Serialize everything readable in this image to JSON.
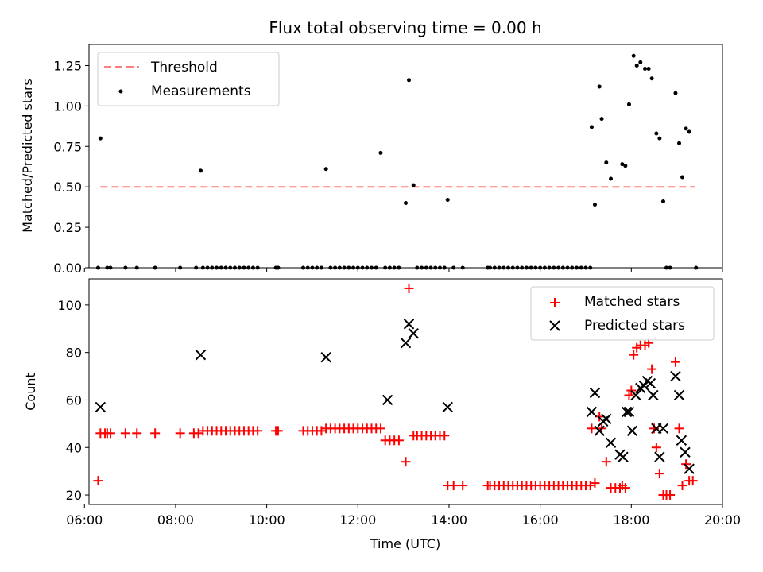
{
  "chart_data": [
    {
      "type": "scatter",
      "title": "Flux total observing time = 0.00 h",
      "xlabel": "",
      "ylabel": "Matched/Predicted stars",
      "xlim": [
        6.1,
        20.0
      ],
      "ylim": [
        0,
        1.38
      ],
      "x_ticks": [
        "06:00",
        "08:00",
        "10:00",
        "12:00",
        "14:00",
        "16:00",
        "18:00",
        "20:00"
      ],
      "y_ticks": [
        "0.00",
        "0.25",
        "0.50",
        "0.75",
        "1.00",
        "1.25"
      ],
      "threshold": {
        "name": "Threshold",
        "y": 0.5,
        "x_range": [
          6.35,
          19.4
        ],
        "color": "#ff7f7f"
      },
      "series": [
        {
          "name": "Measurements",
          "color": "#000000",
          "x": [
            6.3,
            6.35,
            6.5,
            6.57,
            6.9,
            7.15,
            7.55,
            8.1,
            8.45,
            8.55,
            8.6,
            8.7,
            8.8,
            8.9,
            9.0,
            9.1,
            9.2,
            9.3,
            9.4,
            9.5,
            9.6,
            9.7,
            9.8,
            10.2,
            10.25,
            10.8,
            10.9,
            11.0,
            11.1,
            11.2,
            11.3,
            11.4,
            11.5,
            11.6,
            11.7,
            11.8,
            11.9,
            12.0,
            12.1,
            12.2,
            12.3,
            12.4,
            12.5,
            12.6,
            12.7,
            12.8,
            12.9,
            13.05,
            13.12,
            13.22,
            13.3,
            13.4,
            13.5,
            13.6,
            13.7,
            13.8,
            13.9,
            13.97,
            14.1,
            14.3,
            14.85,
            14.9,
            15.0,
            15.1,
            15.2,
            15.3,
            15.4,
            15.5,
            15.6,
            15.7,
            15.8,
            15.9,
            16.0,
            16.1,
            16.2,
            16.3,
            16.4,
            16.5,
            16.6,
            16.7,
            16.8,
            16.9,
            17.0,
            17.1,
            17.13,
            17.2,
            17.3,
            17.35,
            17.45,
            17.55,
            17.8,
            17.87,
            17.95,
            18.05,
            18.12,
            18.2,
            18.3,
            18.38,
            18.45,
            18.55,
            18.62,
            18.7,
            18.77,
            18.85,
            18.97,
            19.05,
            19.12,
            19.2,
            19.27,
            19.42
          ],
          "values": [
            0,
            0.8,
            0,
            0,
            0,
            0,
            0,
            0,
            0,
            0.6,
            0,
            0,
            0,
            0,
            0,
            0,
            0,
            0,
            0,
            0,
            0,
            0,
            0,
            0,
            0,
            0,
            0,
            0,
            0,
            0,
            0.61,
            0,
            0,
            0,
            0,
            0,
            0,
            0,
            0,
            0,
            0,
            0,
            0.71,
            0,
            0,
            0,
            0,
            0.4,
            1.16,
            0.51,
            0,
            0,
            0,
            0,
            0,
            0,
            0,
            0.42,
            0,
            0,
            0,
            0,
            0,
            0,
            0,
            0,
            0,
            0,
            0,
            0,
            0,
            0,
            0,
            0,
            0,
            0,
            0,
            0,
            0,
            0,
            0,
            0,
            0,
            0,
            0.87,
            0.39,
            1.12,
            0.92,
            0.65,
            0.55,
            0.64,
            0.63,
            1.01,
            1.31,
            1.25,
            1.27,
            1.23,
            1.23,
            1.17,
            0.83,
            0.8,
            0.41,
            0,
            0,
            1.08,
            0.77,
            0.56,
            0.86,
            0.84,
            0
          ]
        }
      ],
      "legend": {
        "placement": "top-left",
        "entries": [
          "Threshold",
          "Measurements"
        ]
      }
    },
    {
      "type": "scatter",
      "title": "",
      "xlabel": "Time (UTC)",
      "ylabel": "Count",
      "xlim": [
        6.1,
        20.0
      ],
      "ylim": [
        16,
        111
      ],
      "x_ticks": [
        "06:00",
        "08:00",
        "10:00",
        "12:00",
        "14:00",
        "16:00",
        "18:00",
        "20:00"
      ],
      "y_ticks": [
        "20",
        "40",
        "60",
        "80",
        "100"
      ],
      "series": [
        {
          "name": "Matched stars",
          "marker": "plus",
          "color": "#ff0000",
          "x": [
            6.3,
            6.35,
            6.45,
            6.5,
            6.57,
            6.9,
            7.15,
            7.55,
            8.1,
            8.4,
            8.5,
            8.6,
            8.7,
            8.8,
            8.9,
            9.0,
            9.1,
            9.2,
            9.3,
            9.4,
            9.5,
            9.6,
            9.7,
            9.8,
            10.2,
            10.25,
            10.8,
            10.9,
            11.0,
            11.1,
            11.2,
            11.3,
            11.4,
            11.5,
            11.6,
            11.7,
            11.8,
            11.9,
            12.0,
            12.1,
            12.2,
            12.3,
            12.4,
            12.5,
            12.6,
            12.7,
            12.8,
            12.9,
            13.05,
            13.12,
            13.22,
            13.3,
            13.4,
            13.5,
            13.6,
            13.7,
            13.8,
            13.9,
            13.97,
            14.1,
            14.3,
            14.85,
            14.9,
            15.0,
            15.1,
            15.2,
            15.3,
            15.4,
            15.5,
            15.6,
            15.7,
            15.8,
            15.9,
            16.0,
            16.1,
            16.2,
            16.3,
            16.4,
            16.5,
            16.6,
            16.7,
            16.8,
            16.9,
            17.0,
            17.1,
            17.13,
            17.2,
            17.3,
            17.35,
            17.45,
            17.55,
            17.65,
            17.75,
            17.8,
            17.87,
            17.95,
            18.0,
            18.05,
            18.12,
            18.2,
            18.3,
            18.38,
            18.45,
            18.5,
            18.55,
            18.62,
            18.7,
            18.77,
            18.85,
            18.97,
            19.05,
            19.12,
            19.2,
            19.27,
            19.35
          ],
          "values": [
            26,
            46,
            46,
            46,
            46,
            46,
            46,
            46,
            46,
            46,
            46,
            47,
            47,
            47,
            47,
            47,
            47,
            47,
            47,
            47,
            47,
            47,
            47,
            47,
            47,
            47,
            47,
            47,
            47,
            47,
            47,
            48,
            48,
            48,
            48,
            48,
            48,
            48,
            48,
            48,
            48,
            48,
            48,
            48,
            43,
            43,
            43,
            43,
            34,
            107,
            45,
            45,
            45,
            45,
            45,
            45,
            45,
            45,
            24,
            24,
            24,
            24,
            24,
            24,
            24,
            24,
            24,
            24,
            24,
            24,
            24,
            24,
            24,
            24,
            24,
            24,
            24,
            24,
            24,
            24,
            24,
            24,
            24,
            24,
            24,
            48,
            25,
            53,
            48,
            34,
            23,
            23,
            23,
            24,
            23,
            62,
            64,
            79,
            82,
            83,
            83,
            84,
            73,
            48,
            40,
            29,
            20,
            20,
            20,
            76,
            48,
            24,
            33,
            26,
            26
          ]
        },
        {
          "name": "Predicted stars",
          "marker": "x",
          "color": "#000000",
          "x": [
            6.35,
            8.55,
            11.3,
            12.65,
            13.05,
            13.12,
            13.22,
            13.97,
            17.13,
            17.2,
            17.3,
            17.38,
            17.45,
            17.55,
            17.75,
            17.82,
            17.9,
            17.95,
            18.02,
            18.1,
            18.2,
            18.28,
            18.35,
            18.42,
            18.48,
            18.55,
            18.62,
            18.7,
            18.97,
            19.05,
            19.1,
            19.18,
            19.27
          ],
          "values": [
            57,
            79,
            78,
            60,
            84,
            92,
            88,
            57,
            55,
            63,
            47,
            51,
            52,
            42,
            37,
            36,
            55,
            55,
            47,
            62,
            65,
            66,
            68,
            67,
            62,
            48,
            36,
            48,
            70,
            62,
            43,
            38,
            31
          ]
        }
      ],
      "legend": {
        "placement": "top-right",
        "entries": [
          "Matched stars",
          "Predicted stars"
        ]
      }
    }
  ]
}
